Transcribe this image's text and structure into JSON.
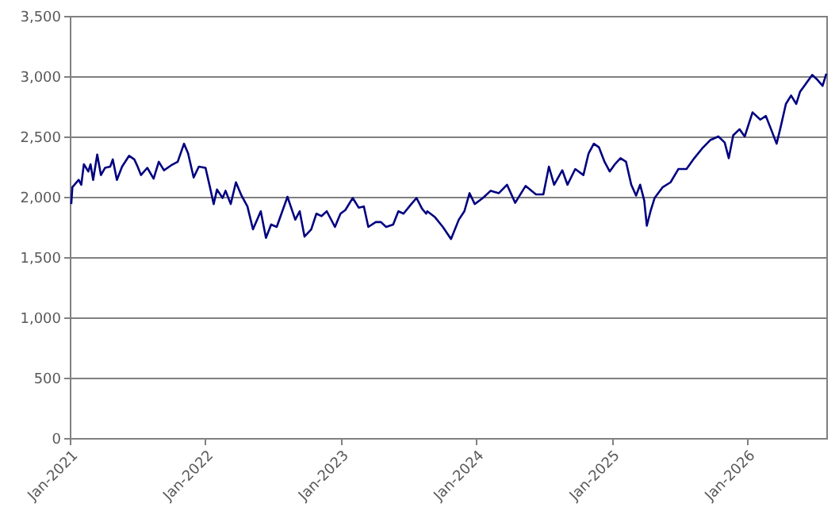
{
  "chart_data": {
    "type": "line",
    "x": [
      "2021-01-05",
      "2021-01-08",
      "2021-01-25",
      "2021-02-01",
      "2021-02-08",
      "2021-02-20",
      "2021-02-26",
      "2021-03-05",
      "2021-03-16",
      "2021-03-26",
      "2021-04-06",
      "2021-04-20",
      "2021-04-27",
      "2021-05-08",
      "2021-05-22",
      "2021-06-10",
      "2021-06-24",
      "2021-07-03",
      "2021-07-12",
      "2021-07-29",
      "2021-08-15",
      "2021-08-29",
      "2021-09-12",
      "2021-10-01",
      "2021-10-19",
      "2021-11-05",
      "2021-11-16",
      "2021-12-01",
      "2021-12-15",
      "2022-01-02",
      "2022-01-14",
      "2022-01-24",
      "2022-02-02",
      "2022-02-17",
      "2022-02-25",
      "2022-03-11",
      "2022-03-25",
      "2022-04-09",
      "2022-04-25",
      "2022-05-10",
      "2022-05-31",
      "2022-06-14",
      "2022-06-28",
      "2022-07-13",
      "2022-08-11",
      "2022-09-01",
      "2022-09-13",
      "2022-09-26",
      "2022-10-14",
      "2022-10-28",
      "2022-11-11",
      "2022-11-25",
      "2022-12-17",
      "2023-01-01",
      "2023-01-14",
      "2023-02-03",
      "2023-02-19",
      "2023-03-05",
      "2023-03-17",
      "2023-04-06",
      "2023-04-20",
      "2023-05-04",
      "2023-05-23",
      "2023-06-06",
      "2023-06-20",
      "2023-07-11",
      "2023-07-25",
      "2023-08-09",
      "2023-08-20",
      "2023-08-23",
      "2023-09-13",
      "2023-10-04",
      "2023-10-26",
      "2023-11-16",
      "2023-12-01",
      "2023-12-15",
      "2023-12-29",
      "2024-01-20",
      "2024-02-10",
      "2024-03-03",
      "2024-03-25",
      "2024-04-16",
      "2024-05-14",
      "2024-06-11",
      "2024-07-01",
      "2024-07-16",
      "2024-07-30",
      "2024-08-21",
      "2024-09-04",
      "2024-09-25",
      "2024-10-17",
      "2024-10-31",
      "2024-11-14",
      "2024-11-28",
      "2024-12-13",
      "2024-12-27",
      "2025-01-10",
      "2025-01-25",
      "2025-02-09",
      "2025-02-23",
      "2025-03-08",
      "2025-03-19",
      "2025-03-30",
      "2025-04-06",
      "2025-04-16",
      "2025-04-27",
      "2025-05-19",
      "2025-06-09",
      "2025-06-30",
      "2025-07-22",
      "2025-08-12",
      "2025-09-02",
      "2025-09-24",
      "2025-10-16",
      "2025-11-02",
      "2025-11-13",
      "2025-11-25",
      "2025-12-12",
      "2025-12-26",
      "2026-01-16",
      "2026-02-06",
      "2026-02-21",
      "2026-03-07",
      "2026-03-22",
      "2026-04-02",
      "2026-04-16",
      "2026-04-30",
      "2026-05-14",
      "2026-05-24",
      "2026-06-07",
      "2026-06-26",
      "2026-07-10",
      "2026-07-24",
      "2026-08-03"
    ],
    "series": [
      {
        "color": "#000080",
        "values": [
          1940,
          2080,
          2140,
          2100,
          2270,
          2210,
          2270,
          2140,
          2350,
          2180,
          2240,
          2250,
          2310,
          2140,
          2250,
          2340,
          2310,
          2250,
          2180,
          2240,
          2150,
          2290,
          2220,
          2260,
          2290,
          2440,
          2360,
          2160,
          2250,
          2240,
          2080,
          1940,
          2060,
          1990,
          2050,
          1940,
          2120,
          2010,
          1920,
          1730,
          1880,
          1660,
          1770,
          1750,
          2000,
          1810,
          1880,
          1670,
          1730,
          1860,
          1840,
          1880,
          1750,
          1860,
          1890,
          1990,
          1910,
          1920,
          1750,
          1790,
          1790,
          1750,
          1770,
          1880,
          1860,
          1940,
          1990,
          1900,
          1860,
          1880,
          1830,
          1750,
          1650,
          1810,
          1880,
          2030,
          1940,
          1990,
          2050,
          2030,
          2100,
          1950,
          2090,
          2020,
          2020,
          2250,
          2100,
          2220,
          2100,
          2230,
          2180,
          2360,
          2440,
          2410,
          2290,
          2210,
          2270,
          2320,
          2290,
          2100,
          2010,
          2100,
          1970,
          1760,
          1880,
          1990,
          2080,
          2120,
          2230,
          2230,
          2320,
          2400,
          2470,
          2500,
          2450,
          2320,
          2510,
          2560,
          2500,
          2700,
          2640,
          2670,
          2560,
          2440,
          2580,
          2770,
          2840,
          2770,
          2870,
          2930,
          3010,
          2970,
          2920,
          3020
        ]
      }
    ],
    "xlim": [
      "2021-01-01",
      "2026-08-03"
    ],
    "xticks": [
      {
        "value": "2021-01-01",
        "label": "Jan-2021"
      },
      {
        "value": "2022-01-01",
        "label": "Jan-2022"
      },
      {
        "value": "2023-01-01",
        "label": "Jan-2023"
      },
      {
        "value": "2024-01-01",
        "label": "Jan-2024"
      },
      {
        "value": "2025-01-01",
        "label": "Jan-2025"
      },
      {
        "value": "2026-01-01",
        "label": "Jan-2026"
      }
    ],
    "ylim": [
      0,
      3500
    ],
    "yticks": [
      {
        "value": 0,
        "label": "0"
      },
      {
        "value": 500,
        "label": "500"
      },
      {
        "value": 1000,
        "label": "1,000"
      },
      {
        "value": 1500,
        "label": "1,500"
      },
      {
        "value": 2000,
        "label": "2,000"
      },
      {
        "value": 2500,
        "label": "2,500"
      },
      {
        "value": 3000,
        "label": "3,000"
      },
      {
        "value": 3500,
        "label": "3,500"
      }
    ],
    "grid": "y",
    "marker": "none",
    "line_style": "solid"
  }
}
